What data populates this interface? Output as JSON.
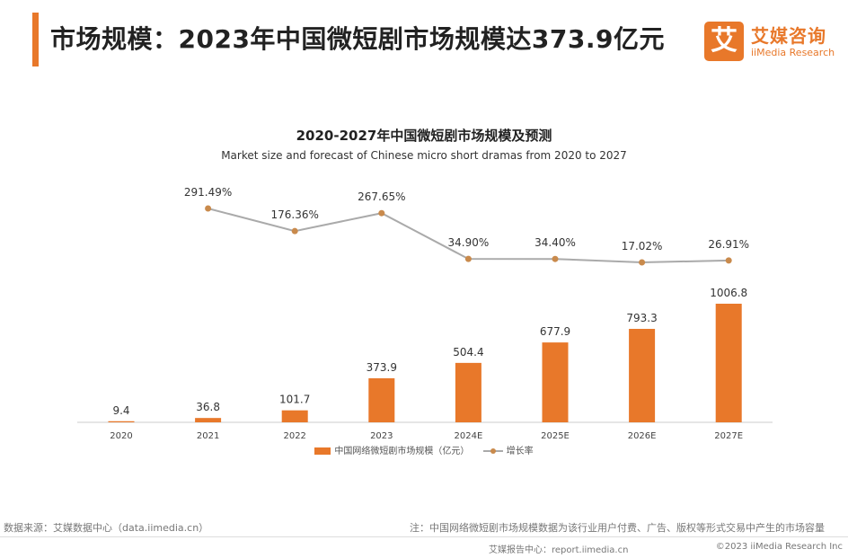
{
  "header": {
    "title": "市场规模：2023年中国微短剧市场规模达373.9亿元"
  },
  "logo": {
    "mark": "艾",
    "name_cn": "艾媒咨询",
    "name_en": "iiMedia Research"
  },
  "chart_data": {
    "type": "bar",
    "title": "2020-2027年中国微短剧市场规模及预测",
    "subtitle": "Market size and forecast of Chinese micro short dramas from 2020 to 2027",
    "categories": [
      "2020",
      "2021",
      "2022",
      "2023",
      "2024E",
      "2025E",
      "2026E",
      "2027E"
    ],
    "series": [
      {
        "name": "中国网络微短剧市场规模（亿元）",
        "type": "bar",
        "values": [
          9.4,
          36.8,
          101.7,
          373.9,
          504.4,
          677.9,
          793.3,
          1006.8
        ],
        "labels": [
          "9.4",
          "36.8",
          "101.7",
          "373.9",
          "504.4",
          "677.9",
          "793.3",
          "1006.8"
        ]
      },
      {
        "name": "增长率",
        "type": "line",
        "values": [
          null,
          291.49,
          176.36,
          267.65,
          34.9,
          34.4,
          17.02,
          26.91
        ],
        "labels": [
          "",
          "291.49%",
          "176.36%",
          "267.65%",
          "34.90%",
          "34.40%",
          "17.02%",
          "26.91%"
        ]
      }
    ],
    "xlabel": "",
    "ylabel": "",
    "ylim": [
      0,
      1100
    ],
    "colors": {
      "bar": "#E8782A",
      "line": "#AAAAAA",
      "marker": "#C98A4C"
    },
    "legend_position": "bottom-center"
  },
  "footer": {
    "source": "数据来源：艾媒数据中心（data.iimedia.cn）",
    "note": "注：中国网络微短剧市场规模数据为该行业用户付费、广告、版权等形式交易中产生的市场容量",
    "report": "艾媒报告中心：report.iimedia.cn",
    "copyright": "©2023  iiMedia Research Inc"
  }
}
